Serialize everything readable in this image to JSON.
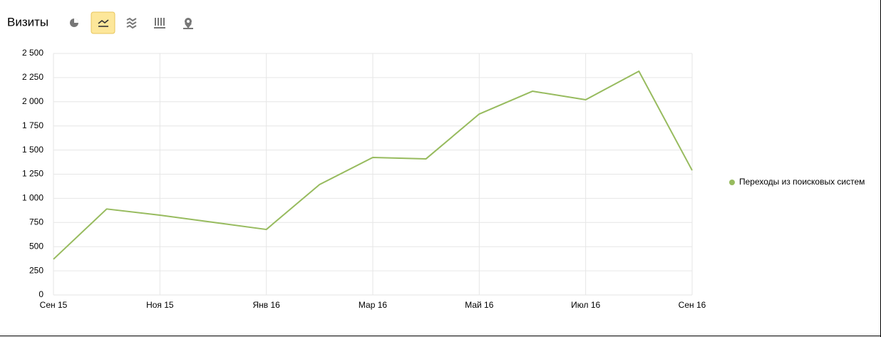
{
  "chart_data": {
    "type": "line",
    "title": "Визиты",
    "categories": [
      "Сен 15",
      null,
      "Ноя 15",
      null,
      "Янв 16",
      null,
      "Мар 16",
      null,
      "Май 16",
      null,
      "Июл 16",
      null,
      "Сен 16"
    ],
    "series": [
      {
        "name": "Переходы из поисковых систем",
        "color": "#97bb5e",
        "values": [
          370,
          890,
          826,
          752,
          678,
          1143,
          1423,
          1409,
          1873,
          2109,
          2021,
          2316,
          1290
        ]
      }
    ],
    "ylim": [
      0,
      2500
    ],
    "yticks": [
      0,
      250,
      500,
      750,
      {
        "value": 1000,
        "label": "1 000"
      },
      {
        "value": 1250,
        "label": "1 250"
      },
      {
        "value": 1500,
        "label": "1 500"
      },
      {
        "value": 1750,
        "label": "1 750"
      },
      {
        "value": 2000,
        "label": "2 000"
      },
      {
        "value": 2250,
        "label": "2 250"
      },
      {
        "value": 2500,
        "label": "2 500"
      }
    ],
    "grid": true,
    "legend": "right"
  }
}
